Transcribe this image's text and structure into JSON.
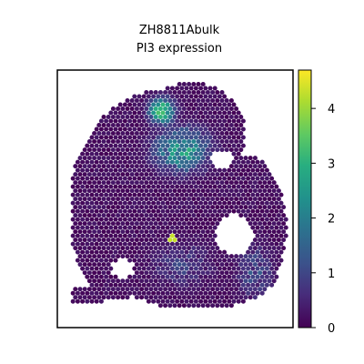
{
  "chart_data": {
    "type": "heatmap",
    "title": "ZH8811Abulk",
    "subtitle": "PI3 expression",
    "xlabel": "",
    "ylabel": "",
    "colorbar": {
      "min": 0,
      "max": 4.7,
      "ticks": [
        "0",
        "1",
        "2",
        "3",
        "4"
      ],
      "tick_values": [
        0,
        1,
        2,
        3,
        4
      ],
      "colormap": "viridis",
      "colors": [
        "#440154",
        "#3b528b",
        "#21918c",
        "#5ec962",
        "#fde725"
      ]
    },
    "grid": false,
    "legend": "colorbar right",
    "regions": [
      {
        "name": "tissue-body",
        "level": 0.15
      },
      {
        "name": "upper-hotspot",
        "level": 4.2
      },
      {
        "name": "central-cluster",
        "level": 3.2
      },
      {
        "name": "right-lobe",
        "level": 1.5
      },
      {
        "name": "lower-band",
        "level": 1.2
      },
      {
        "name": "isolated-spot",
        "level": 4.3
      }
    ]
  }
}
